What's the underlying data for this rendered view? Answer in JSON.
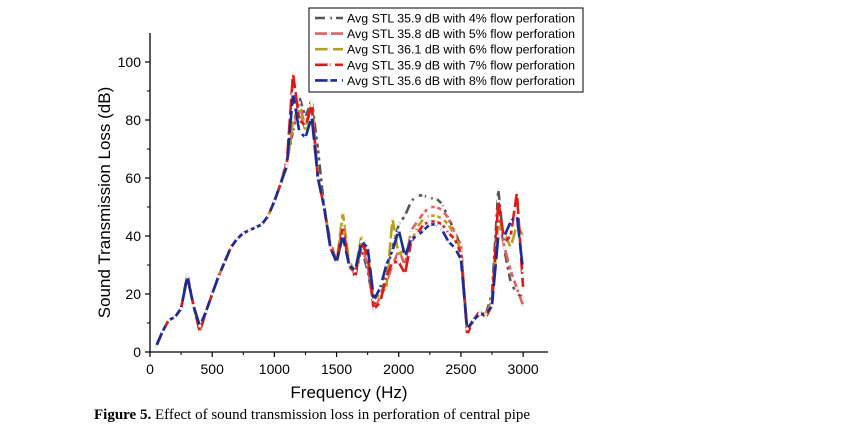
{
  "caption": {
    "label": "Figure 5.",
    "text": " Effect of sound transmission loss in perforation of central pipe"
  },
  "chart_data": {
    "type": "line",
    "xlabel": "Frequency (Hz)",
    "ylabel": "Sound Transmission Loss (dB)",
    "xlim": [
      0,
      3200
    ],
    "ylim": [
      0,
      110
    ],
    "xticks": [
      0,
      500,
      1000,
      1500,
      2000,
      2500,
      3000
    ],
    "yticks": [
      0,
      20,
      40,
      60,
      80,
      100
    ],
    "grid": false,
    "legend_position": "top-right",
    "x": [
      50,
      100,
      150,
      200,
      250,
      300,
      350,
      400,
      450,
      500,
      550,
      600,
      650,
      700,
      750,
      800,
      850,
      900,
      950,
      1000,
      1050,
      1100,
      1150,
      1200,
      1250,
      1300,
      1350,
      1400,
      1450,
      1500,
      1550,
      1600,
      1650,
      1700,
      1750,
      1800,
      1850,
      1900,
      1950,
      2000,
      2050,
      2100,
      2150,
      2200,
      2250,
      2300,
      2350,
      2400,
      2450,
      2500,
      2550,
      2600,
      2650,
      2700,
      2750,
      2800,
      2850,
      2900,
      2950,
      3000
    ],
    "series": [
      {
        "name": "Avg STL 35.9 dB with 4% flow perforation",
        "color": "#555555",
        "dash": "10,4,3,4",
        "values": [
          2,
          7,
          11,
          12,
          15,
          27,
          16,
          8,
          14,
          20,
          26,
          31,
          36,
          39,
          41,
          42,
          43,
          44,
          47,
          52,
          58,
          66,
          76,
          88,
          81,
          87,
          70,
          50,
          38,
          31,
          40,
          31,
          26,
          36,
          28,
          16,
          18,
          27,
          36,
          44,
          47,
          52,
          54,
          54,
          53,
          53,
          51,
          46,
          42,
          36,
          7,
          11,
          13,
          13,
          20,
          56,
          35,
          24,
          20,
          19
        ]
      },
      {
        "name": "Avg STL 35.8 dB with 5% flow perforation",
        "color": "#e06060",
        "dash": "12,4",
        "values": [
          2,
          7,
          11,
          12,
          15,
          26,
          16,
          7,
          14,
          20,
          26,
          31,
          36,
          39,
          41,
          42,
          43,
          44,
          47,
          52,
          58,
          65,
          78,
          86,
          77,
          86,
          60,
          50,
          37,
          31,
          44,
          30,
          27,
          37,
          30,
          14,
          19,
          24,
          30,
          35,
          30,
          42,
          45,
          48,
          50,
          50,
          49,
          46,
          41,
          37,
          7,
          11,
          14,
          12,
          18,
          46,
          36,
          28,
          22,
          16
        ]
      },
      {
        "name": "Avg STL 36.1 dB with 6% flow perforation",
        "color": "#b5a21a",
        "dash": "14,4",
        "values": [
          2,
          7,
          11,
          12,
          15,
          26,
          16,
          7,
          14,
          20,
          26,
          31,
          36,
          39,
          41,
          42,
          43,
          44,
          47,
          52,
          58,
          65,
          80,
          84,
          76,
          86,
          60,
          51,
          36,
          31,
          48,
          31,
          28,
          40,
          34,
          18,
          20,
          22,
          46,
          33,
          36,
          38,
          43,
          46,
          47,
          47,
          46,
          44,
          40,
          35,
          7,
          11,
          14,
          13,
          17,
          44,
          41,
          36,
          44,
          40
        ]
      },
      {
        "name": "Avg STL 35.9 dB with 7% flow perforation",
        "color": "#e01818",
        "dash": "16,4",
        "values": [
          2,
          7,
          11,
          12,
          15,
          26,
          16,
          7,
          14,
          20,
          26,
          31,
          36,
          39,
          41,
          42,
          43,
          44,
          47,
          52,
          58,
          65,
          96,
          80,
          78,
          85,
          60,
          50,
          36,
          31,
          43,
          30,
          26,
          38,
          33,
          15,
          17,
          26,
          31,
          31,
          27,
          38,
          41,
          44,
          45,
          45,
          44,
          41,
          39,
          34,
          6,
          11,
          14,
          12,
          16,
          52,
          38,
          40,
          55,
          22
        ]
      },
      {
        "name": "Avg STL 35.6 dB with 8% flow perforation",
        "color": "#1a2c9a",
        "dash": "22,5",
        "values": [
          2,
          7,
          11,
          12,
          15,
          26,
          16,
          9,
          14,
          20,
          26,
          31,
          36,
          39,
          41,
          42,
          43,
          44,
          47,
          52,
          58,
          64,
          89,
          76,
          74,
          81,
          60,
          50,
          36,
          31,
          40,
          30,
          28,
          38,
          36,
          18,
          22,
          30,
          35,
          42,
          33,
          39,
          40,
          42,
          44,
          44,
          42,
          38,
          36,
          32,
          8,
          11,
          13,
          13,
          16,
          40,
          40,
          45,
          47,
          28
        ]
      }
    ]
  }
}
